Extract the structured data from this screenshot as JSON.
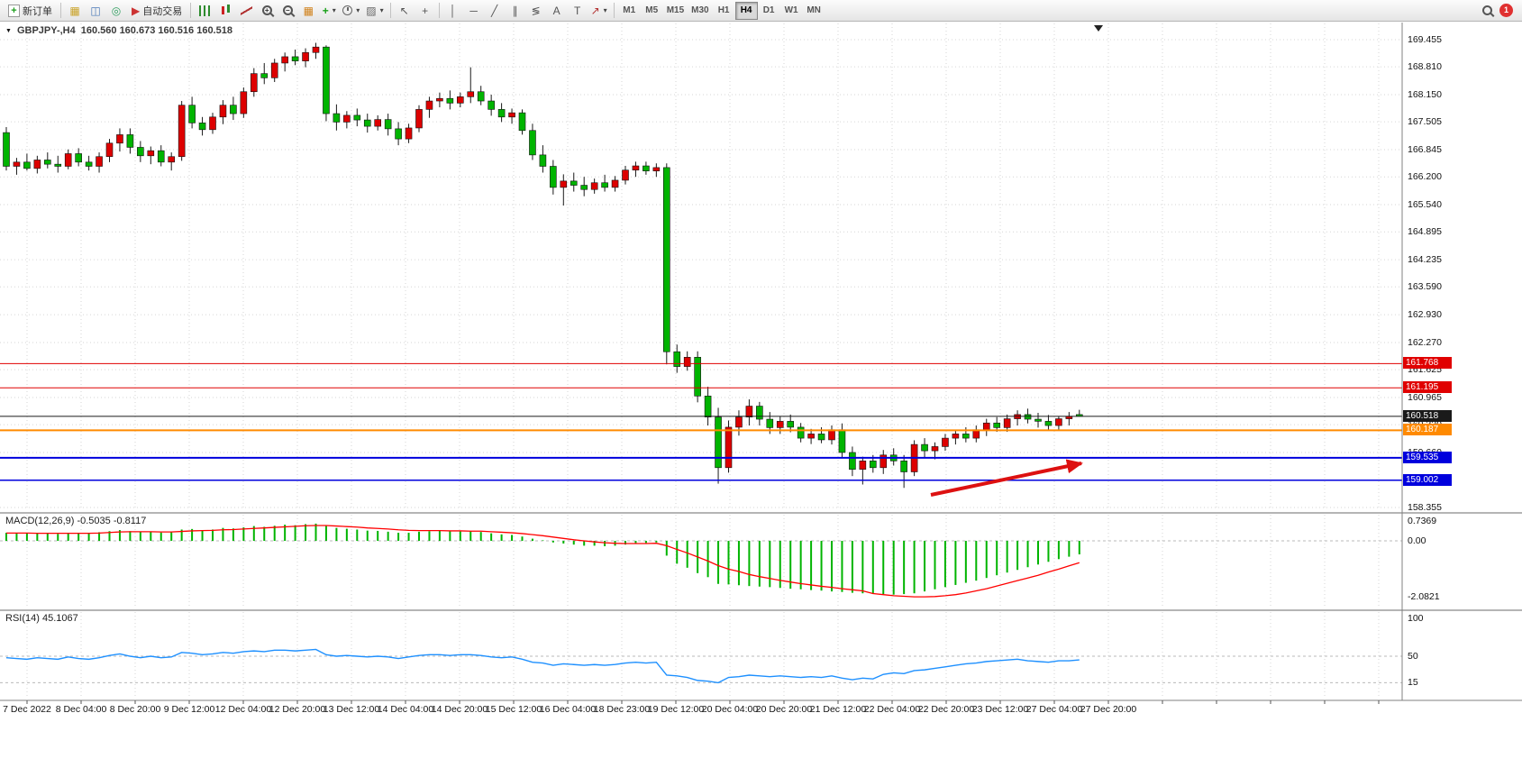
{
  "toolbar": {
    "new_order_label": "新订单",
    "auto_trading_label": "自动交易",
    "text_tool_label": "A",
    "label_tool_label": "T",
    "timeframes": [
      "M1",
      "M5",
      "M15",
      "M30",
      "H1",
      "H4",
      "D1",
      "W1",
      "MN"
    ],
    "active_timeframe": "H4",
    "notification_count": "1"
  },
  "chart": {
    "title_symbol": "GBPJPY-,H4",
    "title_ohlc": "160.560 160.673 160.516 160.518",
    "macd_label": "MACD(12,26,9) -0.5035 -0.8117",
    "rsi_label": "RSI(14) 45.1067"
  },
  "colors": {
    "bull_body": "#dd0000",
    "bear_body": "#00b400",
    "wick": "#1a1a1a",
    "macd_histogram": "#00b400",
    "macd_signal": "#ff0000",
    "rsi_line": "#1e90ff",
    "grid": "#d6d6d6",
    "arrow": "#dd1111",
    "level_red": "#e00000",
    "level_orange": "#ff8a00",
    "level_blue": "#0000dd",
    "bid_tag": "#1a1a1a"
  },
  "chart_data": {
    "type": "candlestick",
    "symbol": "GBPJPY-",
    "timeframe": "H4",
    "ohlc_current": {
      "open": 160.56,
      "high": 160.673,
      "low": 160.516,
      "close": 160.518
    },
    "price_axis_ticks": [
      "169.455",
      "168.810",
      "168.150",
      "167.505",
      "166.845",
      "166.200",
      "165.540",
      "164.895",
      "164.235",
      "163.590",
      "162.930",
      "162.270",
      "161.625",
      "160.965",
      "160.320",
      "159.660",
      "159.000",
      "158.355"
    ],
    "time_axis_ticks": [
      "7 Dec 2022",
      "8 Dec 04:00",
      "8 Dec 20:00",
      "9 Dec 12:00",
      "12 Dec 04:00",
      "12 Dec 20:00",
      "13 Dec 12:00",
      "14 Dec 04:00",
      "14 Dec 20:00",
      "15 Dec 12:00",
      "16 Dec 04:00",
      "18 Dec 23:00",
      "19 Dec 12:00",
      "20 Dec 04:00",
      "20 Dec 20:00",
      "21 Dec 12:00",
      "22 Dec 04:00",
      "22 Dec 20:00",
      "23 Dec 12:00",
      "27 Dec 04:00",
      "27 Dec 20:00"
    ],
    "levels": [
      {
        "price": 161.768,
        "label": "161.768",
        "color": "#e00000",
        "width": 1
      },
      {
        "price": 161.195,
        "label": "161.195",
        "color": "#e00000",
        "width": 1
      },
      {
        "price": 160.518,
        "label": "160.518",
        "color": "#1a1a1a",
        "width": 1,
        "role": "bid"
      },
      {
        "price": 160.187,
        "label": "160.187",
        "color": "#ff8a00",
        "width": 2
      },
      {
        "price": 159.535,
        "label": "159.535",
        "color": "#0000dd",
        "width": 2
      },
      {
        "price": 159.002,
        "label": "159.002",
        "color": "#0000dd",
        "width": 1.5
      }
    ],
    "candles": [
      [
        167.25,
        167.38,
        166.35,
        166.45
      ],
      [
        166.45,
        166.65,
        166.25,
        166.55
      ],
      [
        166.55,
        166.75,
        166.35,
        166.4
      ],
      [
        166.4,
        166.7,
        166.28,
        166.6
      ],
      [
        166.6,
        166.78,
        166.4,
        166.5
      ],
      [
        166.5,
        166.7,
        166.3,
        166.45
      ],
      [
        166.45,
        166.85,
        166.38,
        166.75
      ],
      [
        166.75,
        166.88,
        166.45,
        166.55
      ],
      [
        166.55,
        166.7,
        166.35,
        166.45
      ],
      [
        166.45,
        166.78,
        166.3,
        166.68
      ],
      [
        166.68,
        167.1,
        166.55,
        167.0
      ],
      [
        167.0,
        167.35,
        166.8,
        167.2
      ],
      [
        167.2,
        167.35,
        166.75,
        166.9
      ],
      [
        166.9,
        167.05,
        166.55,
        166.7
      ],
      [
        166.7,
        166.92,
        166.5,
        166.82
      ],
      [
        166.82,
        166.95,
        166.45,
        166.55
      ],
      [
        166.55,
        166.78,
        166.35,
        166.68
      ],
      [
        166.68,
        168.0,
        166.58,
        167.9
      ],
      [
        167.9,
        168.1,
        167.35,
        167.48
      ],
      [
        167.48,
        167.62,
        167.18,
        167.32
      ],
      [
        167.32,
        167.72,
        167.22,
        167.62
      ],
      [
        167.62,
        168.02,
        167.45,
        167.9
      ],
      [
        167.9,
        168.1,
        167.55,
        167.7
      ],
      [
        167.7,
        168.32,
        167.6,
        168.22
      ],
      [
        168.22,
        168.78,
        168.1,
        168.65
      ],
      [
        168.65,
        168.9,
        168.4,
        168.55
      ],
      [
        168.55,
        169.0,
        168.45,
        168.9
      ],
      [
        168.9,
        169.15,
        168.7,
        169.05
      ],
      [
        169.05,
        169.22,
        168.85,
        168.95
      ],
      [
        168.95,
        169.25,
        168.8,
        169.15
      ],
      [
        169.15,
        169.38,
        169.0,
        169.28
      ],
      [
        169.28,
        169.32,
        167.52,
        167.7
      ],
      [
        167.7,
        167.92,
        167.3,
        167.5
      ],
      [
        167.5,
        167.76,
        167.35,
        167.66
      ],
      [
        167.66,
        167.82,
        167.4,
        167.55
      ],
      [
        167.55,
        167.7,
        167.25,
        167.4
      ],
      [
        167.4,
        167.66,
        167.3,
        167.56
      ],
      [
        167.56,
        167.7,
        167.18,
        167.34
      ],
      [
        167.34,
        167.5,
        166.95,
        167.1
      ],
      [
        167.1,
        167.46,
        167.0,
        167.36
      ],
      [
        167.36,
        167.9,
        167.26,
        167.8
      ],
      [
        167.8,
        168.1,
        167.6,
        168.0
      ],
      [
        168.0,
        168.2,
        167.85,
        168.06
      ],
      [
        168.06,
        168.25,
        167.8,
        167.95
      ],
      [
        167.95,
        168.2,
        167.85,
        168.1
      ],
      [
        168.1,
        168.8,
        167.95,
        168.22
      ],
      [
        168.22,
        168.36,
        167.9,
        168.0
      ],
      [
        168.0,
        168.15,
        167.65,
        167.8
      ],
      [
        167.8,
        167.95,
        167.5,
        167.62
      ],
      [
        167.62,
        167.82,
        167.46,
        167.72
      ],
      [
        167.72,
        167.8,
        167.2,
        167.3
      ],
      [
        167.3,
        167.46,
        166.6,
        166.72
      ],
      [
        166.72,
        166.95,
        166.3,
        166.45
      ],
      [
        166.45,
        166.6,
        165.78,
        165.95
      ],
      [
        165.95,
        166.26,
        165.52,
        166.1
      ],
      [
        166.1,
        166.3,
        165.85,
        166.0
      ],
      [
        166.0,
        166.2,
        165.74,
        165.9
      ],
      [
        165.9,
        166.16,
        165.8,
        166.06
      ],
      [
        166.06,
        166.25,
        165.85,
        165.95
      ],
      [
        165.95,
        166.22,
        165.85,
        166.12
      ],
      [
        166.12,
        166.46,
        166.02,
        166.36
      ],
      [
        166.36,
        166.56,
        166.2,
        166.46
      ],
      [
        166.46,
        166.56,
        166.25,
        166.34
      ],
      [
        166.34,
        166.52,
        166.2,
        166.42
      ],
      [
        166.42,
        166.52,
        161.75,
        162.05
      ],
      [
        162.05,
        162.22,
        161.55,
        161.7
      ],
      [
        161.7,
        162.06,
        161.6,
        161.92
      ],
      [
        161.92,
        162.06,
        160.85,
        161.0
      ],
      [
        161.0,
        161.22,
        160.3,
        160.5
      ],
      [
        160.5,
        160.72,
        158.92,
        159.3
      ],
      [
        159.3,
        160.42,
        159.18,
        160.26
      ],
      [
        160.26,
        160.66,
        160.06,
        160.5
      ],
      [
        160.5,
        160.92,
        160.3,
        160.76
      ],
      [
        160.76,
        160.86,
        160.3,
        160.45
      ],
      [
        160.45,
        160.62,
        160.1,
        160.25
      ],
      [
        160.25,
        160.52,
        160.1,
        160.4
      ],
      [
        160.4,
        160.56,
        160.14,
        160.26
      ],
      [
        160.26,
        160.36,
        159.9,
        160.0
      ],
      [
        160.0,
        160.22,
        159.86,
        160.1
      ],
      [
        160.1,
        160.26,
        159.88,
        159.96
      ],
      [
        159.96,
        160.3,
        159.85,
        160.2
      ],
      [
        160.2,
        160.35,
        159.55,
        159.66
      ],
      [
        159.66,
        159.8,
        159.1,
        159.26
      ],
      [
        159.26,
        159.56,
        158.9,
        159.46
      ],
      [
        159.46,
        159.6,
        159.18,
        159.3
      ],
      [
        159.3,
        159.72,
        159.15,
        159.6
      ],
      [
        159.6,
        159.76,
        159.35,
        159.46
      ],
      [
        159.46,
        159.6,
        158.82,
        159.2
      ],
      [
        159.2,
        159.95,
        159.1,
        159.85
      ],
      [
        159.85,
        160.0,
        159.55,
        159.7
      ],
      [
        159.7,
        159.9,
        159.5,
        159.8
      ],
      [
        159.8,
        160.1,
        159.7,
        160.0
      ],
      [
        160.0,
        160.2,
        159.85,
        160.1
      ],
      [
        160.1,
        160.26,
        159.9,
        160.0
      ],
      [
        160.0,
        160.3,
        159.9,
        160.2
      ],
      [
        160.2,
        160.46,
        160.05,
        160.36
      ],
      [
        160.36,
        160.5,
        160.15,
        160.25
      ],
      [
        160.25,
        160.56,
        160.15,
        160.46
      ],
      [
        160.46,
        160.66,
        160.3,
        160.56
      ],
      [
        160.56,
        160.7,
        160.35,
        160.45
      ],
      [
        160.45,
        160.6,
        160.25,
        160.4
      ],
      [
        160.4,
        160.55,
        160.2,
        160.3
      ],
      [
        160.3,
        160.52,
        160.2,
        160.46
      ],
      [
        160.46,
        160.62,
        160.3,
        160.52
      ],
      [
        160.56,
        160.673,
        160.516,
        160.518
      ]
    ],
    "indicators": [
      {
        "name": "MACD",
        "params": [
          12,
          26,
          9
        ],
        "current": [
          -0.5035,
          -0.8117
        ],
        "axis_ticks": [
          "0.7369",
          "0.00",
          "-2.0821"
        ],
        "histogram": [
          0.3,
          0.28,
          0.3,
          0.27,
          0.28,
          0.26,
          0.3,
          0.28,
          0.27,
          0.32,
          0.36,
          0.4,
          0.36,
          0.33,
          0.34,
          0.31,
          0.32,
          0.42,
          0.44,
          0.4,
          0.42,
          0.48,
          0.46,
          0.5,
          0.55,
          0.52,
          0.56,
          0.6,
          0.58,
          0.62,
          0.64,
          0.55,
          0.48,
          0.45,
          0.42,
          0.38,
          0.37,
          0.34,
          0.3,
          0.3,
          0.34,
          0.36,
          0.37,
          0.35,
          0.35,
          0.36,
          0.33,
          0.28,
          0.24,
          0.22,
          0.16,
          0.08,
          0.02,
          -0.06,
          -0.1,
          -0.14,
          -0.18,
          -0.18,
          -0.2,
          -0.18,
          -0.14,
          -0.1,
          -0.08,
          -0.06,
          -0.55,
          -0.85,
          -1.0,
          -1.2,
          -1.35,
          -1.6,
          -1.62,
          -1.65,
          -1.68,
          -1.7,
          -1.72,
          -1.75,
          -1.78,
          -1.8,
          -1.83,
          -1.85,
          -1.88,
          -1.9,
          -1.93,
          -1.95,
          -1.97,
          -1.98,
          -2.0,
          -1.98,
          -1.95,
          -1.88,
          -1.8,
          -1.72,
          -1.64,
          -1.56,
          -1.48,
          -1.38,
          -1.28,
          -1.18,
          -1.08,
          -0.98,
          -0.88,
          -0.78,
          -0.68,
          -0.59,
          -0.5035
        ],
        "signal": [
          0.29,
          0.29,
          0.29,
          0.28,
          0.28,
          0.28,
          0.28,
          0.28,
          0.28,
          0.29,
          0.31,
          0.33,
          0.34,
          0.34,
          0.34,
          0.33,
          0.33,
          0.35,
          0.37,
          0.38,
          0.39,
          0.41,
          0.42,
          0.44,
          0.46,
          0.48,
          0.5,
          0.52,
          0.54,
          0.56,
          0.57,
          0.57,
          0.55,
          0.53,
          0.51,
          0.48,
          0.46,
          0.44,
          0.41,
          0.39,
          0.38,
          0.38,
          0.38,
          0.37,
          0.37,
          0.36,
          0.36,
          0.34,
          0.32,
          0.3,
          0.27,
          0.23,
          0.19,
          0.14,
          0.09,
          0.04,
          0.0,
          -0.04,
          -0.07,
          -0.09,
          -0.1,
          -0.1,
          -0.1,
          -0.09,
          -0.18,
          -0.32,
          -0.45,
          -0.6,
          -0.75,
          -0.92,
          -1.05,
          -1.14,
          -1.25,
          -1.33,
          -1.4,
          -1.47,
          -1.53,
          -1.59,
          -1.64,
          -1.69,
          -1.73,
          -1.78,
          -1.82,
          -1.86,
          -1.96,
          -2.0,
          -2.04,
          -2.06,
          -2.08,
          -2.0821,
          -2.07,
          -2.04,
          -2.0,
          -1.94,
          -1.86,
          -1.78,
          -1.68,
          -1.58,
          -1.48,
          -1.38,
          -1.28,
          -1.16,
          -1.05,
          -0.93,
          -0.8117
        ]
      },
      {
        "name": "RSI",
        "params": [
          14
        ],
        "current": 45.1067,
        "axis_ticks": [
          "100",
          "50",
          "15"
        ],
        "values": [
          48,
          47,
          46,
          48,
          47,
          46,
          49,
          47,
          46,
          48,
          51,
          53,
          50,
          48,
          50,
          48,
          49,
          55,
          54,
          52,
          53,
          55,
          54,
          56,
          57,
          56,
          58,
          58,
          57,
          58,
          59,
          52,
          50,
          51,
          50,
          49,
          50,
          49,
          47,
          49,
          51,
          52,
          52,
          51,
          52,
          52,
          51,
          49,
          48,
          49,
          46,
          42,
          41,
          38,
          40,
          39,
          38,
          39,
          38,
          39,
          41,
          42,
          41,
          42,
          25,
          24,
          22,
          18,
          17,
          15,
          22,
          23,
          25,
          24,
          23,
          24,
          23,
          22,
          23,
          22,
          24,
          21,
          19,
          21,
          20,
          26,
          28,
          27,
          31,
          32,
          34,
          36,
          38,
          40,
          41,
          43,
          44,
          45,
          46,
          44,
          43,
          42,
          44,
          44,
          45.1067
        ]
      }
    ],
    "annotation_arrow": {
      "from": [
        1033,
        549
      ],
      "to": [
        1200,
        514
      ],
      "color": "#dd1111"
    }
  }
}
